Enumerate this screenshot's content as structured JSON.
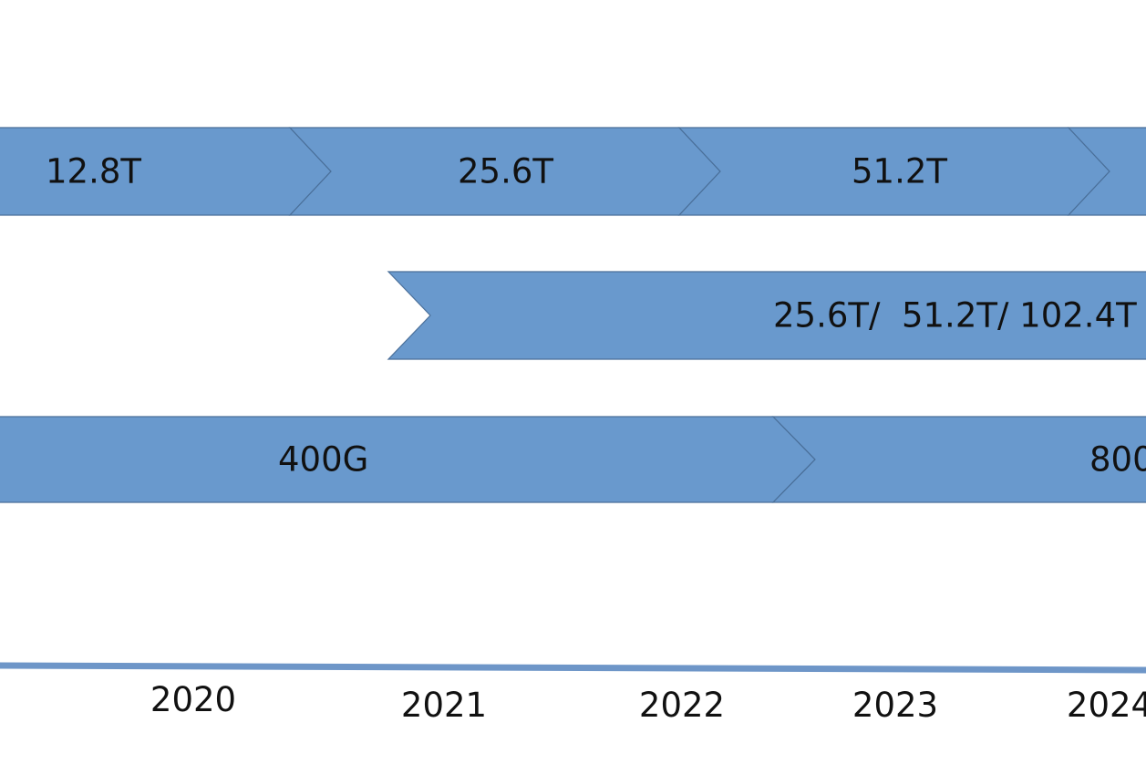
{
  "rows": [
    {
      "segments": [
        {
          "label": "12.8T"
        },
        {
          "label": "25.6T"
        },
        {
          "label": "51.2T"
        },
        {
          "label": ""
        }
      ]
    },
    {
      "segments": [
        {
          "label": "25.6T/  51.2T/ 102.4T"
        }
      ]
    },
    {
      "segments": [
        {
          "label": "400G"
        },
        {
          "label": "800"
        }
      ]
    }
  ],
  "timeline": {
    "years": [
      "2020",
      "2021",
      "2022",
      "2023",
      "2024"
    ]
  },
  "colors": {
    "chevron_fill": "#6999cd",
    "chevron_border": "#4a6f99",
    "axis": "#6e96c8"
  }
}
